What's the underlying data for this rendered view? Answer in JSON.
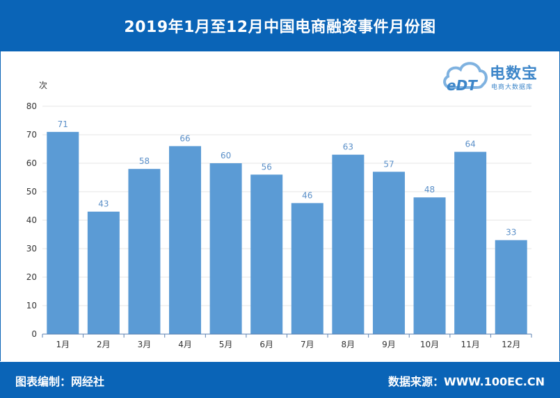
{
  "header": {
    "title": "2019年1月至12月中国电商融资事件月份图"
  },
  "logo": {
    "mark": "eDT",
    "name": "电数宝",
    "tagline": "电商大数据库"
  },
  "footer": {
    "left": "图表编制：网经社",
    "right": "数据来源：WWW.100EC.CN"
  },
  "colors": {
    "header_bg": "#0a64b7",
    "bar": "#5b9bd5",
    "value_label": "#5a8fc8"
  },
  "chart_data": {
    "type": "bar",
    "title": "2019年1月至12月中国电商融资事件月份图",
    "ylabel": "次",
    "xlabel": "",
    "categories": [
      "1月",
      "2月",
      "3月",
      "4月",
      "5月",
      "6月",
      "7月",
      "8月",
      "9月",
      "10月",
      "11月",
      "12月"
    ],
    "values": [
      71,
      43,
      58,
      66,
      60,
      56,
      46,
      63,
      57,
      48,
      64,
      33
    ],
    "ylim": [
      0,
      80
    ],
    "yticks": [
      0,
      10,
      20,
      30,
      40,
      50,
      60,
      70,
      80
    ],
    "grid": true,
    "legend": "none",
    "data_labels": true
  }
}
